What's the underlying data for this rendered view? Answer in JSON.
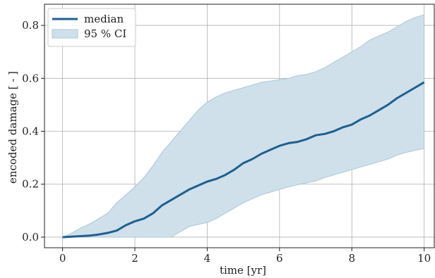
{
  "chart_data": {
    "type": "line",
    "xlabel": "time [yr]",
    "ylabel": "encoded damage [ - ]",
    "xlim": [
      -0.5,
      10.3
    ],
    "ylim": [
      -0.04,
      0.88
    ],
    "xticks": [
      0,
      2,
      4,
      6,
      8,
      10
    ],
    "yticks": [
      0.0,
      0.2,
      0.4,
      0.6,
      0.8
    ],
    "xtick_labels": [
      "0",
      "2",
      "4",
      "6",
      "8",
      "10"
    ],
    "ytick_labels": [
      "0.0",
      "0.2",
      "0.4",
      "0.6",
      "0.8"
    ],
    "grid": true,
    "legend_position": "top-left",
    "legend": [
      {
        "label": "median",
        "kind": "line"
      },
      {
        "label": "95 % CI",
        "kind": "band"
      }
    ],
    "colors": {
      "median": "#1f5f8f",
      "band_fill": "#cfe0ea",
      "band_edge": "#aac8da",
      "grid": "#b0b0b0"
    },
    "x": [
      0,
      0.25,
      0.5,
      0.75,
      1.0,
      1.25,
      1.5,
      1.75,
      2.0,
      2.25,
      2.5,
      2.75,
      3.0,
      3.25,
      3.5,
      3.75,
      4.0,
      4.25,
      4.5,
      4.75,
      5.0,
      5.25,
      5.5,
      5.75,
      6.0,
      6.25,
      6.5,
      6.75,
      7.0,
      7.25,
      7.5,
      7.75,
      8.0,
      8.25,
      8.5,
      8.75,
      9.0,
      9.25,
      9.5,
      9.75,
      10.0
    ],
    "series": [
      {
        "name": "median",
        "values": [
          0.0,
          0.002,
          0.004,
          0.006,
          0.01,
          0.016,
          0.025,
          0.045,
          0.06,
          0.07,
          0.09,
          0.12,
          0.14,
          0.16,
          0.18,
          0.195,
          0.21,
          0.22,
          0.235,
          0.255,
          0.28,
          0.295,
          0.315,
          0.33,
          0.345,
          0.355,
          0.36,
          0.37,
          0.385,
          0.39,
          0.4,
          0.415,
          0.425,
          0.445,
          0.46,
          0.48,
          0.5,
          0.525,
          0.545,
          0.565,
          0.585
        ]
      },
      {
        "name": "95 % CI upper",
        "values": [
          0.0,
          0.015,
          0.035,
          0.05,
          0.07,
          0.09,
          0.13,
          0.16,
          0.19,
          0.225,
          0.27,
          0.32,
          0.36,
          0.4,
          0.44,
          0.48,
          0.51,
          0.53,
          0.545,
          0.555,
          0.565,
          0.575,
          0.585,
          0.59,
          0.595,
          0.6,
          0.61,
          0.615,
          0.625,
          0.64,
          0.66,
          0.68,
          0.7,
          0.72,
          0.745,
          0.76,
          0.775,
          0.795,
          0.815,
          0.83,
          0.84
        ]
      },
      {
        "name": "95 % CI lower",
        "values": [
          0.0,
          0.0,
          0.0,
          0.0,
          0.0,
          0.0,
          0.0,
          0.0,
          0.0,
          0.0,
          0.0,
          0.0,
          0.0,
          0.02,
          0.04,
          0.048,
          0.055,
          0.07,
          0.09,
          0.11,
          0.13,
          0.145,
          0.16,
          0.17,
          0.18,
          0.19,
          0.198,
          0.205,
          0.212,
          0.225,
          0.235,
          0.245,
          0.255,
          0.265,
          0.275,
          0.285,
          0.295,
          0.31,
          0.32,
          0.328,
          0.335
        ]
      }
    ]
  }
}
